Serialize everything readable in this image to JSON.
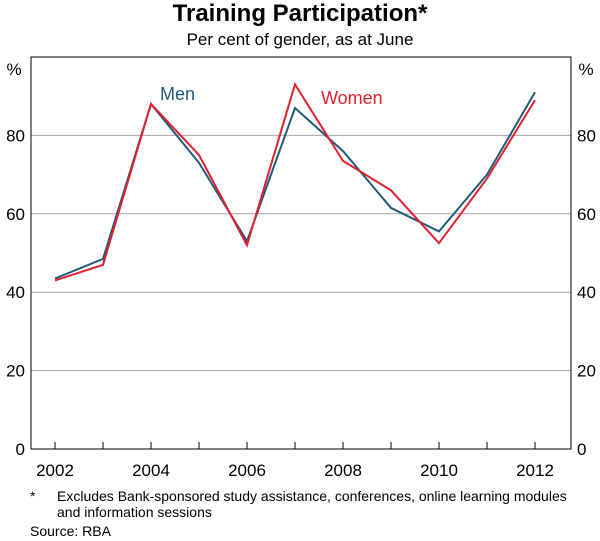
{
  "chart_data": {
    "type": "line",
    "title": "Training Participation*",
    "subtitle": "Per cent of gender, as at June",
    "y_unit_left": "%",
    "y_unit_right": "%",
    "xlim": [
      2001.5,
      2012.75
    ],
    "ylim": [
      0,
      100
    ],
    "y_ticks": [
      0,
      20,
      40,
      60,
      80
    ],
    "x_ticks": [
      2002,
      2004,
      2006,
      2008,
      2010,
      2012
    ],
    "grid": true,
    "x": [
      2002,
      2003,
      2004,
      2005,
      2006,
      2007,
      2008,
      2009,
      2010,
      2011,
      2012
    ],
    "series": [
      {
        "name": "Men",
        "color": "#1f5a7a",
        "values": [
          43.5,
          48.5,
          88,
          73,
          53,
          87,
          76,
          61.5,
          55.5,
          70,
          91
        ]
      },
      {
        "name": "Women",
        "color": "#e3202e",
        "values": [
          43,
          47,
          88,
          75,
          52,
          93,
          73.5,
          66,
          52.5,
          69,
          89
        ]
      }
    ]
  },
  "footnote": {
    "marker": "*",
    "text": "Excludes Bank-sponsored study assistance, conferences, online learning modules and information sessions"
  },
  "source": "Source: RBA"
}
